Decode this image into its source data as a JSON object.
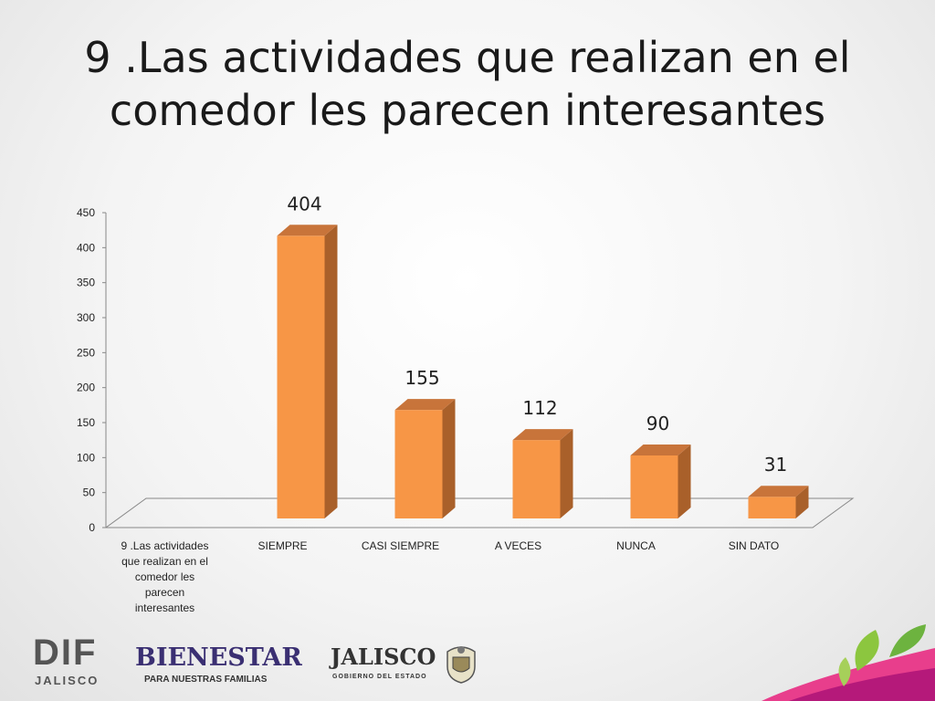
{
  "title": "9 .Las actividades que realizan en el comedor les parecen interesantes",
  "chart_data": {
    "type": "bar",
    "categories": [
      "9 .Las actividades que realizan en el comedor les parecen interesantes",
      "SIEMPRE",
      "CASI SIEMPRE",
      "A VECES",
      "NUNCA",
      "SIN DATO"
    ],
    "values": [
      null,
      404,
      155,
      112,
      90,
      31
    ],
    "data_labels": [
      "",
      "404",
      "155",
      "112",
      "90",
      "31"
    ],
    "ylim": [
      0,
      450
    ],
    "yticks": [
      "0",
      "50",
      "100",
      "150",
      "200",
      "250",
      "300",
      "350",
      "400",
      "450"
    ],
    "grid": false,
    "style": "3d-column",
    "colors": {
      "bar_front": "#f79646",
      "bar_side": "#a9602a",
      "bar_top": "#c8743a"
    }
  },
  "footer": {
    "dif_logo": {
      "main": "DIF",
      "sub": "JALISCO"
    },
    "bienestar_logo": {
      "main": "BIENESTAR",
      "sub": "PARA NUESTRAS FAMILIAS"
    },
    "jalisco_logo": {
      "main": "JALISCO",
      "sub": "GOBIERNO DEL ESTADO"
    }
  }
}
